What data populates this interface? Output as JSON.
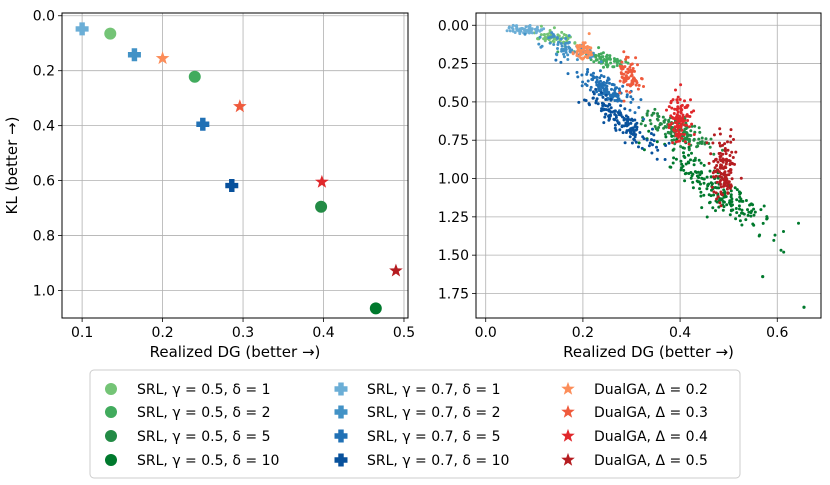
{
  "chart_data": [
    {
      "type": "scatter",
      "panel": "left",
      "xlabel": "Realized DG (better →)",
      "ylabel": "KL (better →)",
      "xlim": [
        0.075,
        0.505
      ],
      "ylim": [
        1.1,
        -0.01
      ],
      "y_inverted": true,
      "grid": true,
      "xticks": [
        "0.1",
        "0.2",
        "0.3",
        "0.4",
        "0.5"
      ],
      "yticks": [
        "0.0",
        "0.2",
        "0.4",
        "0.6",
        "0.8",
        "1.0"
      ],
      "xtick_values": [
        0.1,
        0.2,
        0.3,
        0.4,
        0.5
      ],
      "ytick_values": [
        0.0,
        0.2,
        0.4,
        0.6,
        0.8,
        1.0
      ],
      "series": [
        {
          "name": "SRL, γ = 0.5, δ = 1",
          "marker": "circle",
          "color": "#74c476",
          "x": 0.135,
          "y": 0.065
        },
        {
          "name": "SRL, γ = 0.5, δ = 2",
          "marker": "circle",
          "color": "#41ab5d",
          "x": 0.24,
          "y": 0.222
        },
        {
          "name": "SRL, γ = 0.5, δ = 5",
          "marker": "circle",
          "color": "#238b45",
          "x": 0.397,
          "y": 0.695
        },
        {
          "name": "SRL, γ = 0.5, δ = 10",
          "marker": "circle",
          "color": "#00792d",
          "x": 0.465,
          "y": 1.065
        },
        {
          "name": "SRL, γ = 0.7, δ = 1",
          "marker": "plus",
          "color": "#6baed6",
          "x": 0.1,
          "y": 0.048
        },
        {
          "name": "SRL, γ = 0.7, δ = 2",
          "marker": "plus",
          "color": "#4292c6",
          "x": 0.165,
          "y": 0.142
        },
        {
          "name": "SRL, γ = 0.7, δ = 5",
          "marker": "plus",
          "color": "#2171b5",
          "x": 0.25,
          "y": 0.395
        },
        {
          "name": "SRL, γ = 0.7, δ = 10",
          "marker": "plus",
          "color": "#08519c",
          "x": 0.286,
          "y": 0.618
        },
        {
          "name": "DualGA, Δ = 0.2",
          "marker": "star",
          "color": "#fc8d59",
          "x": 0.2,
          "y": 0.155
        },
        {
          "name": "DualGA, Δ = 0.3",
          "marker": "star",
          "color": "#ef5a3c",
          "x": 0.296,
          "y": 0.33
        },
        {
          "name": "DualGA, Δ = 0.4",
          "marker": "star",
          "color": "#e0282b",
          "x": 0.398,
          "y": 0.605
        },
        {
          "name": "DualGA, Δ = 0.5",
          "marker": "star",
          "color": "#b51c20",
          "x": 0.49,
          "y": 0.928
        }
      ]
    },
    {
      "type": "scatter",
      "panel": "right",
      "xlabel": "Realized DG (better →)",
      "xlim": [
        -0.02,
        0.69
      ],
      "ylim": [
        1.91,
        -0.08
      ],
      "y_inverted": true,
      "grid": true,
      "xticks": [
        "0.0",
        "0.2",
        "0.4",
        "0.6"
      ],
      "yticks": [
        "0.00",
        "0.25",
        "0.50",
        "0.75",
        "1.00",
        "1.25",
        "1.50",
        "1.75"
      ],
      "xtick_values": [
        0.0,
        0.2,
        0.4,
        0.6
      ],
      "ytick_values": [
        0.0,
        0.25,
        0.5,
        0.75,
        1.0,
        1.25,
        1.5,
        1.75
      ],
      "point_clouds": [
        {
          "group": "SRL green",
          "colors": [
            "#74c476",
            "#41ab5d",
            "#238b45",
            "#00792d"
          ],
          "centers": [
            [
              0.14,
              0.08
            ],
            [
              0.24,
              0.22
            ],
            [
              0.4,
              0.7
            ],
            [
              0.47,
              1.06
            ]
          ],
          "spread": [
            [
              0.035,
              0.025
            ],
            [
              0.03,
              0.03
            ],
            [
              0.04,
              0.06
            ],
            [
              0.045,
              0.14
            ]
          ],
          "counts": [
            60,
            70,
            150,
            210
          ],
          "outliers": [
            [
              0.57,
              1.64
            ],
            [
              0.655,
              1.84
            ]
          ]
        },
        {
          "group": "SRL blue",
          "colors": [
            "#6baed6",
            "#4292c6",
            "#2171b5",
            "#08519c"
          ],
          "centers": [
            [
              0.08,
              0.03
            ],
            [
              0.17,
              0.15
            ],
            [
              0.25,
              0.42
            ],
            [
              0.28,
              0.62
            ]
          ],
          "spread": [
            [
              0.035,
              0.015
            ],
            [
              0.04,
              0.045
            ],
            [
              0.03,
              0.06
            ],
            [
              0.03,
              0.1
            ]
          ],
          "counts": [
            60,
            70,
            140,
            150
          ]
        },
        {
          "group": "DualGA",
          "colors": [
            "#fc8d59",
            "#ef5a3c",
            "#e0282b",
            "#b51c20"
          ],
          "centers": [
            [
              0.2,
              0.16
            ],
            [
              0.296,
              0.33
            ],
            [
              0.4,
              0.62
            ],
            [
              0.49,
              0.94
            ]
          ],
          "spread": [
            [
              0.01,
              0.04
            ],
            [
              0.01,
              0.06
            ],
            [
              0.012,
              0.08
            ],
            [
              0.013,
              0.1
            ]
          ],
          "counts": [
            60,
            80,
            110,
            130
          ]
        }
      ]
    }
  ],
  "legend": {
    "columns": [
      [
        "SRL, γ = 0.5, δ = 1",
        "SRL, γ = 0.5, δ = 2",
        "SRL, γ = 0.5, δ = 5",
        "SRL, γ = 0.5, δ = 10"
      ],
      [
        "SRL, γ = 0.7, δ = 1",
        "SRL, γ = 0.7, δ = 2",
        "SRL, γ = 0.7, δ = 5",
        "SRL, γ = 0.7, δ = 10"
      ],
      [
        "DualGA, Δ = 0.2",
        "DualGA, Δ = 0.3",
        "DualGA, Δ = 0.4",
        "DualGA, Δ = 0.5"
      ]
    ]
  }
}
